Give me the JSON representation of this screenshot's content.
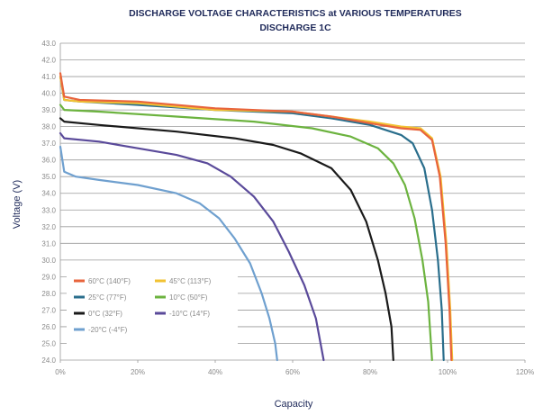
{
  "chart_data": {
    "type": "line",
    "title": "DISCHARGE VOLTAGE CHARACTERISTICS at VARIOUS TEMPERATURES",
    "subtitle": "DISCHARGE 1C",
    "xlabel": "Capacity",
    "ylabel": "Voltage (V)",
    "xlim": [
      0,
      120
    ],
    "ylim": [
      24.0,
      43.0
    ],
    "grid": true,
    "legend_position": "bottom-left",
    "x_ticks": [
      "0%",
      "20%",
      "40%",
      "60%",
      "80%",
      "100%",
      "120%"
    ],
    "x_tick_values": [
      0,
      20,
      40,
      60,
      80,
      100,
      120
    ],
    "y_ticks": [
      "24.0",
      "25.0",
      "26.0",
      "27.0",
      "28.0",
      "29.0",
      "30.0",
      "31.0",
      "32.0",
      "33.0",
      "34.0",
      "35.0",
      "36.0",
      "37.0",
      "38.0",
      "39.0",
      "40.0",
      "41.0",
      "42.0",
      "43.0"
    ],
    "y_tick_values": [
      24,
      25,
      26,
      27,
      28,
      29,
      30,
      31,
      32,
      33,
      34,
      35,
      36,
      37,
      38,
      39,
      40,
      41,
      42,
      43
    ],
    "series": [
      {
        "name": "60°C (140°F)",
        "color": "#e8643c",
        "points": [
          [
            0,
            41.2
          ],
          [
            1,
            39.8
          ],
          [
            5,
            39.6
          ],
          [
            20,
            39.5
          ],
          [
            40,
            39.1
          ],
          [
            60,
            38.9
          ],
          [
            70,
            38.6
          ],
          [
            80,
            38.2
          ],
          [
            88,
            37.9
          ],
          [
            93,
            37.8
          ],
          [
            96,
            37.2
          ],
          [
            98,
            35.0
          ],
          [
            99.5,
            31.0
          ],
          [
            100.5,
            27.0
          ],
          [
            101,
            24.0
          ]
        ]
      },
      {
        "name": "45°C (113°F)",
        "color": "#f2c232",
        "points": [
          [
            0,
            41.0
          ],
          [
            1,
            39.6
          ],
          [
            5,
            39.5
          ],
          [
            20,
            39.4
          ],
          [
            40,
            39.0
          ],
          [
            60,
            38.9
          ],
          [
            70,
            38.6
          ],
          [
            80,
            38.3
          ],
          [
            88,
            38.0
          ],
          [
            93,
            37.9
          ],
          [
            96,
            37.3
          ],
          [
            98.2,
            35.0
          ],
          [
            99.7,
            31.0
          ],
          [
            100.7,
            27.0
          ],
          [
            101.2,
            24.0
          ]
        ]
      },
      {
        "name": "25°C (77°F)",
        "color": "#2a6e8c",
        "points": [
          [
            0,
            41.0
          ],
          [
            1,
            39.6
          ],
          [
            5,
            39.5
          ],
          [
            20,
            39.3
          ],
          [
            40,
            39.0
          ],
          [
            60,
            38.8
          ],
          [
            70,
            38.5
          ],
          [
            80,
            38.1
          ],
          [
            88,
            37.5
          ],
          [
            91,
            37.0
          ],
          [
            94,
            35.5
          ],
          [
            96,
            33.0
          ],
          [
            97.5,
            30.0
          ],
          [
            98.5,
            27.0
          ],
          [
            99,
            24.0
          ]
        ]
      },
      {
        "name": "10°C (50°F)",
        "color": "#6cb33f",
        "points": [
          [
            0,
            39.3
          ],
          [
            1,
            39.0
          ],
          [
            10,
            38.9
          ],
          [
            30,
            38.6
          ],
          [
            50,
            38.3
          ],
          [
            65,
            37.9
          ],
          [
            75,
            37.4
          ],
          [
            82,
            36.7
          ],
          [
            86,
            35.8
          ],
          [
            89,
            34.5
          ],
          [
            91.5,
            32.5
          ],
          [
            93.5,
            30.0
          ],
          [
            95,
            27.5
          ],
          [
            96,
            24.0
          ]
        ]
      },
      {
        "name": "0°C (32°F)",
        "color": "#1a1a1a",
        "points": [
          [
            0,
            38.5
          ],
          [
            1,
            38.3
          ],
          [
            10,
            38.1
          ],
          [
            30,
            37.7
          ],
          [
            45,
            37.3
          ],
          [
            55,
            36.9
          ],
          [
            62,
            36.4
          ],
          [
            70,
            35.5
          ],
          [
            75,
            34.2
          ],
          [
            79,
            32.3
          ],
          [
            82,
            30.0
          ],
          [
            84,
            28.0
          ],
          [
            85.5,
            26.0
          ],
          [
            86,
            24.0
          ]
        ]
      },
      {
        "name": "-10°C (14°F)",
        "color": "#5a4a9a",
        "points": [
          [
            0,
            37.6
          ],
          [
            1,
            37.3
          ],
          [
            10,
            37.1
          ],
          [
            20,
            36.7
          ],
          [
            30,
            36.3
          ],
          [
            38,
            35.8
          ],
          [
            44,
            35.0
          ],
          [
            50,
            33.8
          ],
          [
            55,
            32.3
          ],
          [
            59,
            30.5
          ],
          [
            63,
            28.5
          ],
          [
            66,
            26.5
          ],
          [
            68,
            24.0
          ]
        ]
      },
      {
        "name": "-20°C (-4°F)",
        "color": "#6fa0cf",
        "points": [
          [
            0,
            36.8
          ],
          [
            1,
            35.3
          ],
          [
            4,
            35.0
          ],
          [
            10,
            34.8
          ],
          [
            20,
            34.5
          ],
          [
            30,
            34.0
          ],
          [
            36,
            33.4
          ],
          [
            41,
            32.5
          ],
          [
            45,
            31.3
          ],
          [
            49,
            29.8
          ],
          [
            52,
            28.0
          ],
          [
            54,
            26.5
          ],
          [
            55.5,
            25.0
          ],
          [
            56,
            24.0
          ]
        ]
      }
    ],
    "legend_order": [
      "60°C (140°F)",
      "45°C (113°F)",
      "25°C (77°F)",
      "10°C (50°F)",
      "0°C (32°F)",
      "-10°C (14°F)",
      "-20°C (-4°F)"
    ]
  }
}
